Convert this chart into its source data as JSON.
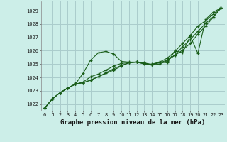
{
  "title": "Graphe pression niveau de la mer (hPa)",
  "bg_color": "#cceee8",
  "grid_color": "#aacccc",
  "line_color": "#1a5e1a",
  "xlim": [
    -0.5,
    23.5
  ],
  "ylim": [
    1021.5,
    1029.7
  ],
  "yticks": [
    1022,
    1023,
    1024,
    1025,
    1026,
    1027,
    1028,
    1029
  ],
  "xticks": [
    0,
    1,
    2,
    3,
    4,
    5,
    6,
    7,
    8,
    9,
    10,
    11,
    12,
    13,
    14,
    15,
    16,
    17,
    18,
    19,
    20,
    21,
    22,
    23
  ],
  "series": [
    [
      1021.7,
      1022.4,
      1022.85,
      1023.2,
      1023.5,
      1024.3,
      1025.3,
      1025.85,
      1025.95,
      1025.75,
      1025.2,
      1025.15,
      1025.15,
      1025.05,
      1024.95,
      1025.15,
      1025.1,
      1026.0,
      1025.85,
      1027.1,
      1025.8,
      1028.35,
      1028.9,
      1029.2
    ],
    [
      1021.7,
      1022.4,
      1022.85,
      1023.2,
      1023.5,
      1023.6,
      1023.8,
      1024.05,
      1024.3,
      1024.55,
      1024.85,
      1025.1,
      1025.15,
      1025.1,
      1024.95,
      1025.1,
      1025.3,
      1025.65,
      1026.05,
      1026.55,
      1027.25,
      1027.85,
      1028.5,
      1029.2
    ],
    [
      1021.7,
      1022.4,
      1022.85,
      1023.2,
      1023.5,
      1023.6,
      1023.8,
      1024.05,
      1024.35,
      1024.65,
      1024.9,
      1025.1,
      1025.15,
      1025.0,
      1025.0,
      1025.15,
      1025.45,
      1025.95,
      1026.55,
      1027.15,
      1027.85,
      1028.25,
      1028.75,
      1029.2
    ],
    [
      1021.7,
      1022.4,
      1022.85,
      1023.2,
      1023.5,
      1023.65,
      1024.05,
      1024.25,
      1024.55,
      1024.85,
      1025.05,
      1025.1,
      1025.15,
      1025.05,
      1024.95,
      1025.0,
      1025.25,
      1025.7,
      1026.3,
      1026.85,
      1027.45,
      1028.05,
      1028.55,
      1029.2
    ]
  ]
}
